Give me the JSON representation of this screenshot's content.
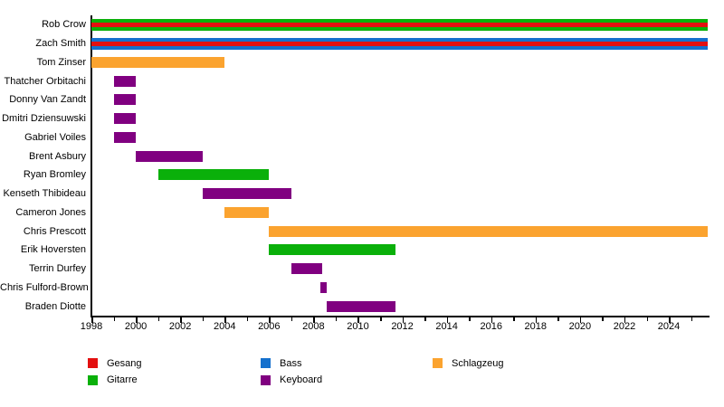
{
  "chart_data": {
    "type": "bar",
    "subtype": "horizontal-timeline-gantt",
    "title": "",
    "grid": false,
    "legend_position": "bottom",
    "x_axis": {
      "min": 1998,
      "max": 2025.75,
      "tick_every": 1,
      "label_every": 2,
      "first_label": 1998,
      "last_label": 2024
    },
    "legend": [
      {
        "label": "Gesang",
        "color": "#e31010"
      },
      {
        "label": "Gitarre",
        "color": "#0ab00a"
      },
      {
        "label": "Bass",
        "color": "#1570cd"
      },
      {
        "label": "Keyboard",
        "color": "#800080"
      },
      {
        "label": "Schlagzeug",
        "color": "#fba32f"
      }
    ],
    "rows": [
      {
        "name": "Rob Crow",
        "bars": [
          {
            "start": 1998,
            "end": 2025.75,
            "roles": [
              "Gitarre",
              "Gesang"
            ]
          }
        ]
      },
      {
        "name": "Zach Smith",
        "bars": [
          {
            "start": 1998,
            "end": 2025.75,
            "roles": [
              "Bass",
              "Gesang"
            ]
          }
        ]
      },
      {
        "name": "Tom Zinser",
        "bars": [
          {
            "start": 1998,
            "end": 2004,
            "roles": [
              "Schlagzeug"
            ]
          }
        ]
      },
      {
        "name": "Thatcher Orbitachi",
        "bars": [
          {
            "start": 1999,
            "end": 2000,
            "roles": [
              "Keyboard"
            ]
          }
        ]
      },
      {
        "name": "Donny Van Zandt",
        "bars": [
          {
            "start": 1999,
            "end": 2000,
            "roles": [
              "Keyboard"
            ]
          }
        ]
      },
      {
        "name": "Dmitri Dziensuwski",
        "bars": [
          {
            "start": 1999,
            "end": 2000,
            "roles": [
              "Keyboard"
            ]
          }
        ]
      },
      {
        "name": "Gabriel Voiles",
        "bars": [
          {
            "start": 1999,
            "end": 2000,
            "roles": [
              "Keyboard"
            ]
          }
        ]
      },
      {
        "name": "Brent Asbury",
        "bars": [
          {
            "start": 2000,
            "end": 2003,
            "roles": [
              "Keyboard"
            ]
          }
        ]
      },
      {
        "name": "Ryan Bromley",
        "bars": [
          {
            "start": 2001,
            "end": 2006,
            "roles": [
              "Gitarre"
            ]
          }
        ]
      },
      {
        "name": "Kenseth Thibideau",
        "bars": [
          {
            "start": 2003,
            "end": 2007,
            "roles": [
              "Keyboard"
            ]
          }
        ]
      },
      {
        "name": "Cameron Jones",
        "bars": [
          {
            "start": 2004,
            "end": 2006,
            "roles": [
              "Schlagzeug"
            ]
          }
        ]
      },
      {
        "name": "Chris Prescott",
        "bars": [
          {
            "start": 2006,
            "end": 2025.75,
            "roles": [
              "Schlagzeug"
            ]
          }
        ]
      },
      {
        "name": "Erik Hoversten",
        "bars": [
          {
            "start": 2006,
            "end": 2011.7,
            "roles": [
              "Gitarre"
            ]
          }
        ]
      },
      {
        "name": "Terrin Durfey",
        "bars": [
          {
            "start": 2007,
            "end": 2008.4,
            "roles": [
              "Keyboard"
            ]
          }
        ]
      },
      {
        "name": "Chris Fulford-Brown",
        "bars": [
          {
            "start": 2008.3,
            "end": 2008.6,
            "roles": [
              "Keyboard"
            ]
          }
        ]
      },
      {
        "name": "Braden Diotte",
        "bars": [
          {
            "start": 2008.6,
            "end": 2011.7,
            "roles": [
              "Keyboard"
            ]
          }
        ]
      }
    ]
  }
}
